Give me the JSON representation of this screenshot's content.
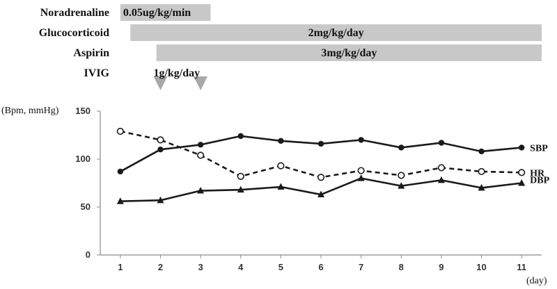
{
  "colors": {
    "bar": "#c8c8c8",
    "arrow": "#a9a9a9",
    "line": "#1a1a1a",
    "axis": "#8a8a8a"
  },
  "chart_data": {
    "type": "line",
    "title": "",
    "xlabel": "(day)",
    "ylabel": "(Bpm, mmHg)",
    "x": [
      1,
      2,
      3,
      4,
      5,
      6,
      7,
      8,
      9,
      10,
      11
    ],
    "xticks": [
      "1",
      "2",
      "3",
      "4",
      "5",
      "6",
      "7",
      "8",
      "9",
      "10",
      "11"
    ],
    "xlim": [
      0.5,
      11.5
    ],
    "ylim": [
      0,
      150
    ],
    "yticks": [
      "0",
      "50",
      "100",
      "150"
    ],
    "grid": false,
    "legend": "inline-right",
    "series": [
      {
        "name": "SBP",
        "marker": "filled-circle",
        "dash": "solid",
        "values": [
          87,
          110,
          115,
          124,
          119,
          116,
          120,
          112,
          117,
          108,
          112
        ]
      },
      {
        "name": "HR",
        "marker": "open-circle",
        "dash": "dashed",
        "values": [
          129,
          120,
          104,
          82,
          93,
          81,
          88,
          83,
          91,
          87,
          86
        ]
      },
      {
        "name": "DBP",
        "marker": "filled-triangle",
        "dash": "solid",
        "values": [
          56,
          57,
          67,
          68,
          71,
          63,
          80,
          72,
          78,
          70,
          75
        ]
      }
    ],
    "treatments": [
      {
        "drug": "Noradrenaline",
        "dose": "0.05ug/kg/min",
        "type": "bar",
        "start": 1,
        "end": 3.25
      },
      {
        "drug": "Glucocorticoid",
        "dose": "2mg/kg/day",
        "type": "bar",
        "start": 1.25,
        "end": 11.5
      },
      {
        "drug": "Aspirin",
        "dose": "3mg/kg/day",
        "type": "bar",
        "start": 1.9,
        "end": 11.5
      },
      {
        "drug": "IVIG",
        "dose": "1g/kg/day",
        "type": "arrows",
        "days": [
          2,
          3
        ]
      }
    ]
  }
}
